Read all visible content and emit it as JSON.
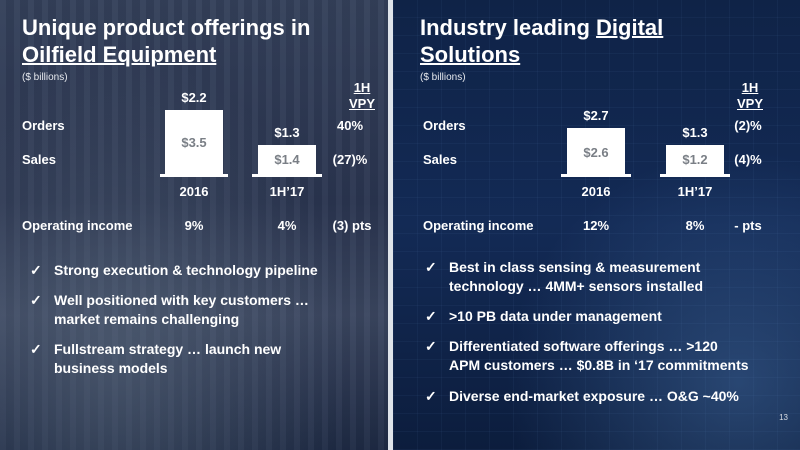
{
  "page_number": "13",
  "left": {
    "title_line1": "Unique product offerings in",
    "title_line2": "Oilfield Equipment",
    "unit": "($ billions)",
    "vpy_line1": "1H",
    "vpy_line2": "VPY",
    "orders_label": "Orders",
    "sales_label": "Sales",
    "opinc_label": "Operating income",
    "col_2016": {
      "orders": "$2.2",
      "sales": "$3.5",
      "label": "2016",
      "opinc": "9%"
    },
    "col_1h17": {
      "orders": "$1.3",
      "sales": "$1.4",
      "label": "1H’17",
      "opinc": "4%"
    },
    "vpy_orders": "40%",
    "vpy_sales": "(27)%",
    "vpy_opinc": "(3) pts",
    "bullets": [
      {
        "line1": "Strong execution & technology pipeline",
        "line2": ""
      },
      {
        "line1": "Well positioned with key customers …",
        "line2": "market remains challenging"
      },
      {
        "line1": "Fullstream strategy … launch new",
        "line2": "business models"
      }
    ]
  },
  "right": {
    "title_line1": "Industry leading",
    "title_line1_u": "Digital",
    "title_line2": "Solutions",
    "unit": "($ billions)",
    "vpy_line1": "1H",
    "vpy_line2": "VPY",
    "orders_label": "Orders",
    "sales_label": "Sales",
    "opinc_label": "Operating income",
    "col_2016": {
      "orders": "$2.7",
      "sales": "$2.6",
      "label": "2016",
      "opinc": "12%"
    },
    "col_1h17": {
      "orders": "$1.3",
      "sales": "$1.2",
      "label": "1H’17",
      "opinc": "8%"
    },
    "vpy_orders": "(2)%",
    "vpy_sales": "(4)%",
    "vpy_opinc": "- pts",
    "bullets": [
      {
        "line1": "Best in class sensing & measurement",
        "line2": "technology … 4MM+ sensors installed"
      },
      {
        "line1": ">10 PB data under management",
        "line2": ""
      },
      {
        "line1": "Differentiated software offerings … >120",
        "line2": "APM customers … $0.8B in ‘17 commitments"
      },
      {
        "line1": "Diverse end-market exposure … O&G ~40%",
        "line2": ""
      }
    ]
  },
  "check_glyph": "✓"
}
